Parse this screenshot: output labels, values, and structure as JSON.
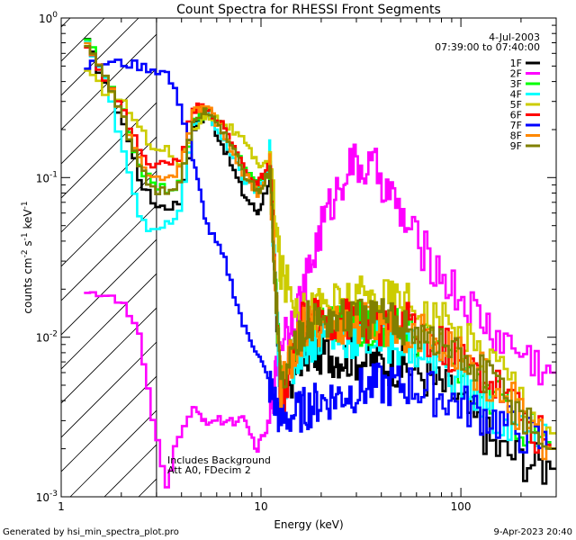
{
  "chart_data": {
    "type": "line",
    "title": "Count Spectra for RHESSI Front Segments",
    "xlabel": "Energy (keV)",
    "ylabel_parts": [
      "counts cm",
      "-2",
      " s",
      "-1",
      " keV",
      "-1"
    ],
    "xscale": "log",
    "yscale": "log",
    "xlim": [
      1,
      300
    ],
    "ylim": [
      0.001,
      1
    ],
    "x_ticks": [
      {
        "value": 1,
        "label": "1"
      },
      {
        "value": 10,
        "label": "10"
      },
      {
        "value": 100,
        "label": "100"
      }
    ],
    "y_ticks": [
      {
        "value": 1,
        "base": "10",
        "exp": "0"
      },
      {
        "value": 0.1,
        "base": "10",
        "exp": "-1"
      },
      {
        "value": 0.01,
        "base": "10",
        "exp": "-2"
      },
      {
        "value": 0.001,
        "base": "10",
        "exp": "-3"
      }
    ],
    "hatched_region": {
      "x_from": 1,
      "x_to": 3
    },
    "date_label": "4-Jul-2003",
    "time_label": "07:39:00 to 07:40:00",
    "annotations": [
      "Includes Background",
      "Att A0, FDecim 2"
    ],
    "footer_left": "Generated by hsi_min_spectra_plot.pro",
    "footer_right": "9-Apr-2023 20:40",
    "series": [
      {
        "name": "1F",
        "color": "#000000",
        "values": [
          0.7,
          0.4,
          0.22,
          0.1,
          0.07,
          0.065,
          0.07,
          0.2,
          0.25,
          0.15,
          0.08,
          0.06,
          0.1,
          0.004,
          0.008,
          0.008,
          0.0075,
          0.007,
          0.0065,
          0.0045,
          0.002,
          0.0015
        ]
      },
      {
        "name": "2F",
        "color": "#ff00ff",
        "values": [
          0.02,
          0.018,
          0.016,
          0.01,
          0.003,
          0.0012,
          0.0025,
          0.0035,
          0.003,
          0.003,
          0.003,
          0.002,
          0.003,
          0.01,
          0.018,
          0.05,
          0.12,
          0.11,
          0.045,
          0.02,
          0.01,
          0.006
        ]
      },
      {
        "name": "3F",
        "color": "#00ff00",
        "values": [
          0.75,
          0.42,
          0.25,
          0.12,
          0.09,
          0.085,
          0.09,
          0.22,
          0.26,
          0.2,
          0.12,
          0.09,
          0.12,
          0.005,
          0.011,
          0.012,
          0.012,
          0.012,
          0.011,
          0.007,
          0.004,
          0.002
        ]
      },
      {
        "name": "4F",
        "color": "#00ffff",
        "values": [
          0.7,
          0.4,
          0.15,
          0.06,
          0.045,
          0.05,
          0.06,
          0.21,
          0.26,
          0.16,
          0.1,
          0.08,
          0.13,
          0.004,
          0.009,
          0.01,
          0.01,
          0.0095,
          0.009,
          0.006,
          0.003,
          0.002
        ]
      },
      {
        "name": "5F",
        "color": "#cccc00",
        "values": [
          0.45,
          0.35,
          0.3,
          0.2,
          0.16,
          0.15,
          0.12,
          0.2,
          0.25,
          0.22,
          0.17,
          0.12,
          0.13,
          0.025,
          0.014,
          0.016,
          0.017,
          0.018,
          0.017,
          0.011,
          0.007,
          0.0025
        ]
      },
      {
        "name": "6F",
        "color": "#ff0000",
        "values": [
          0.7,
          0.42,
          0.25,
          0.15,
          0.12,
          0.12,
          0.13,
          0.27,
          0.28,
          0.2,
          0.12,
          0.09,
          0.12,
          0.004,
          0.012,
          0.013,
          0.013,
          0.012,
          0.012,
          0.008,
          0.005,
          0.002
        ]
      },
      {
        "name": "7F",
        "color": "#0000ff",
        "values": [
          0.5,
          0.52,
          0.52,
          0.5,
          0.48,
          0.45,
          0.3,
          0.13,
          0.05,
          0.03,
          0.012,
          0.008,
          0.005,
          0.003,
          0.0035,
          0.004,
          0.0045,
          0.005,
          0.005,
          0.004,
          0.003,
          0.002
        ]
      },
      {
        "name": "8F",
        "color": "#ff8800",
        "values": [
          0.7,
          0.43,
          0.24,
          0.13,
          0.1,
          0.1,
          0.11,
          0.27,
          0.28,
          0.18,
          0.11,
          0.08,
          0.11,
          0.005,
          0.011,
          0.012,
          0.012,
          0.012,
          0.011,
          0.008,
          0.005,
          0.002
        ]
      },
      {
        "name": "9F",
        "color": "#808000",
        "values": [
          0.65,
          0.42,
          0.23,
          0.12,
          0.085,
          0.08,
          0.09,
          0.23,
          0.26,
          0.19,
          0.11,
          0.08,
          0.11,
          0.005,
          0.012,
          0.013,
          0.013,
          0.013,
          0.012,
          0.008,
          0.005,
          0.002
        ]
      }
    ],
    "x": [
      1.3,
      1.6,
      2.0,
      2.4,
      2.8,
      3.3,
      3.8,
      4.5,
      5.3,
      6.5,
      8.0,
      9.5,
      11.0,
      12.5,
      16.0,
      20.0,
      27.0,
      38.0,
      55.0,
      90.0,
      150.0,
      280.0
    ]
  }
}
